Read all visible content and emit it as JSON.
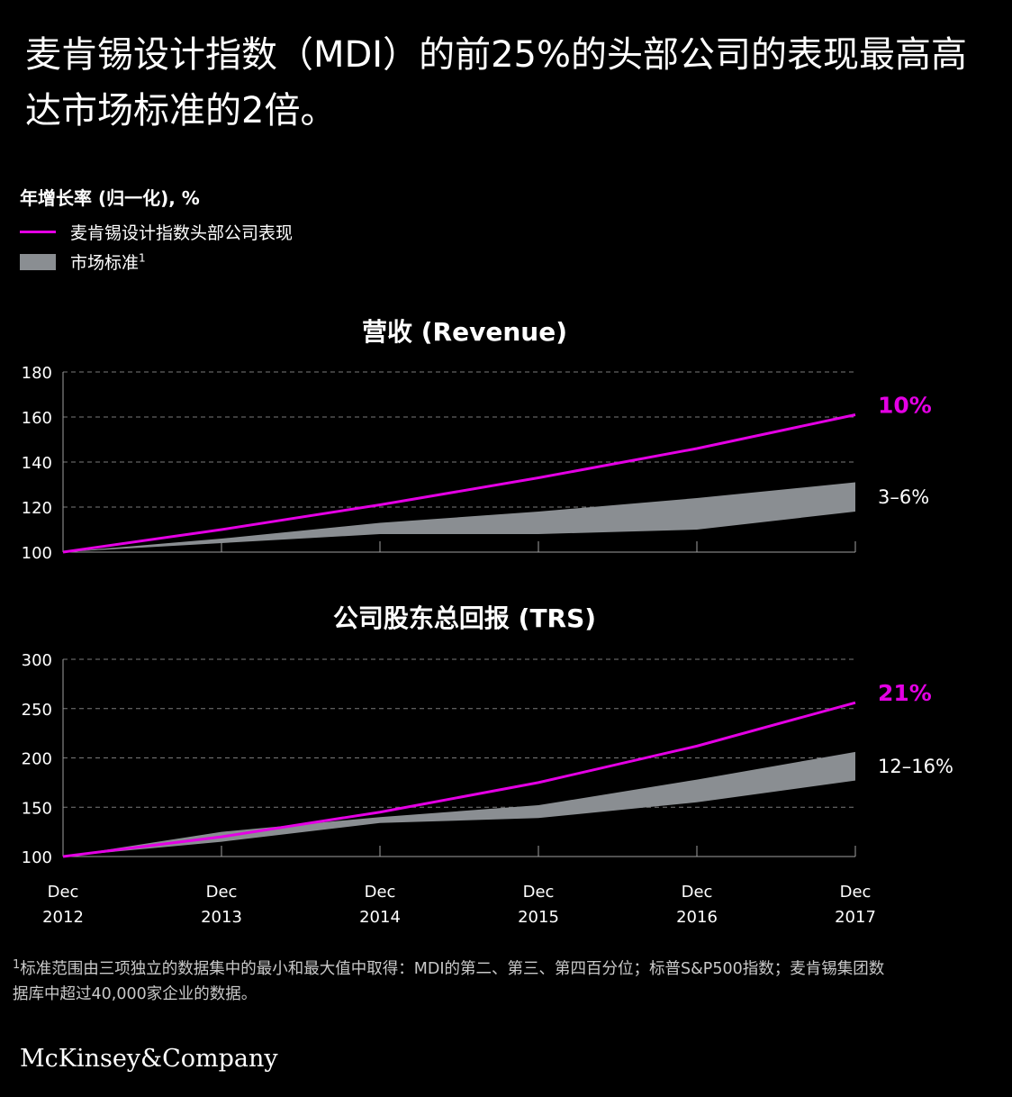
{
  "headline": "麦肯锡设计指数（MDI）的前25%的头部公司的表现最高高达市场标准的2倍。",
  "legend": {
    "title": "年增长率 (归一化), %",
    "items": [
      {
        "label": "麦肯锡设计指数头部公司表现",
        "color": "#e400e4",
        "kind": "line"
      },
      {
        "label": "市场标准",
        "footnote_mark": "1",
        "color": "#8a8e92",
        "kind": "area"
      }
    ]
  },
  "chart_data": [
    {
      "type": "line",
      "title": "营收 (Revenue)",
      "x_ticks": [
        {
          "month": "Dec",
          "year": "2012"
        },
        {
          "month": "Dec",
          "year": "2013"
        },
        {
          "month": "Dec",
          "year": "2014"
        },
        {
          "month": "Dec",
          "year": "2015"
        },
        {
          "month": "Dec",
          "year": "2016"
        },
        {
          "month": "Dec",
          "year": "2017"
        }
      ],
      "yticks": [
        100,
        120,
        140,
        160,
        180
      ],
      "ylim": [
        100,
        180
      ],
      "grid": true,
      "series": [
        {
          "name": "麦肯锡设计指数头部公司表现",
          "type": "line",
          "color": "#e400e4",
          "values": [
            100,
            110,
            121,
            133,
            146,
            161
          ],
          "end_label": "10%"
        },
        {
          "name": "市场标准",
          "type": "band",
          "color": "#8a8e92",
          "upper": [
            100,
            106,
            113,
            118,
            124,
            131
          ],
          "lower": [
            100,
            104,
            108,
            108,
            110,
            118
          ],
          "end_label": "3–6%"
        }
      ]
    },
    {
      "type": "line",
      "title": "公司股东总回报 (TRS)",
      "x_ticks": [
        {
          "month": "Dec",
          "year": "2012"
        },
        {
          "month": "Dec",
          "year": "2013"
        },
        {
          "month": "Dec",
          "year": "2014"
        },
        {
          "month": "Dec",
          "year": "2015"
        },
        {
          "month": "Dec",
          "year": "2016"
        },
        {
          "month": "Dec",
          "year": "2017"
        }
      ],
      "yticks": [
        100,
        150,
        200,
        250,
        300
      ],
      "ylim": [
        100,
        300
      ],
      "grid": true,
      "series": [
        {
          "name": "麦肯锡设计指数头部公司表现",
          "type": "line",
          "color": "#e400e4",
          "values": [
            100,
            120,
            145,
            175,
            212,
            256
          ],
          "end_label": "21%"
        },
        {
          "name": "市场标准",
          "type": "band",
          "color": "#8a8e92",
          "upper": [
            100,
            125,
            140,
            152,
            178,
            206
          ],
          "lower": [
            100,
            115,
            134,
            139,
            155,
            177
          ],
          "end_label": "12–16%"
        }
      ]
    }
  ],
  "footnote": {
    "mark": "1",
    "text": "标准范围由三项独立的数据集中的最小和最大值中取得：MDI的第二、第三、第四百分位；标普S&P500指数；麦肯锡集团数据库中超过40,000家企业的数据。"
  },
  "brand": "McKinsey&Company"
}
